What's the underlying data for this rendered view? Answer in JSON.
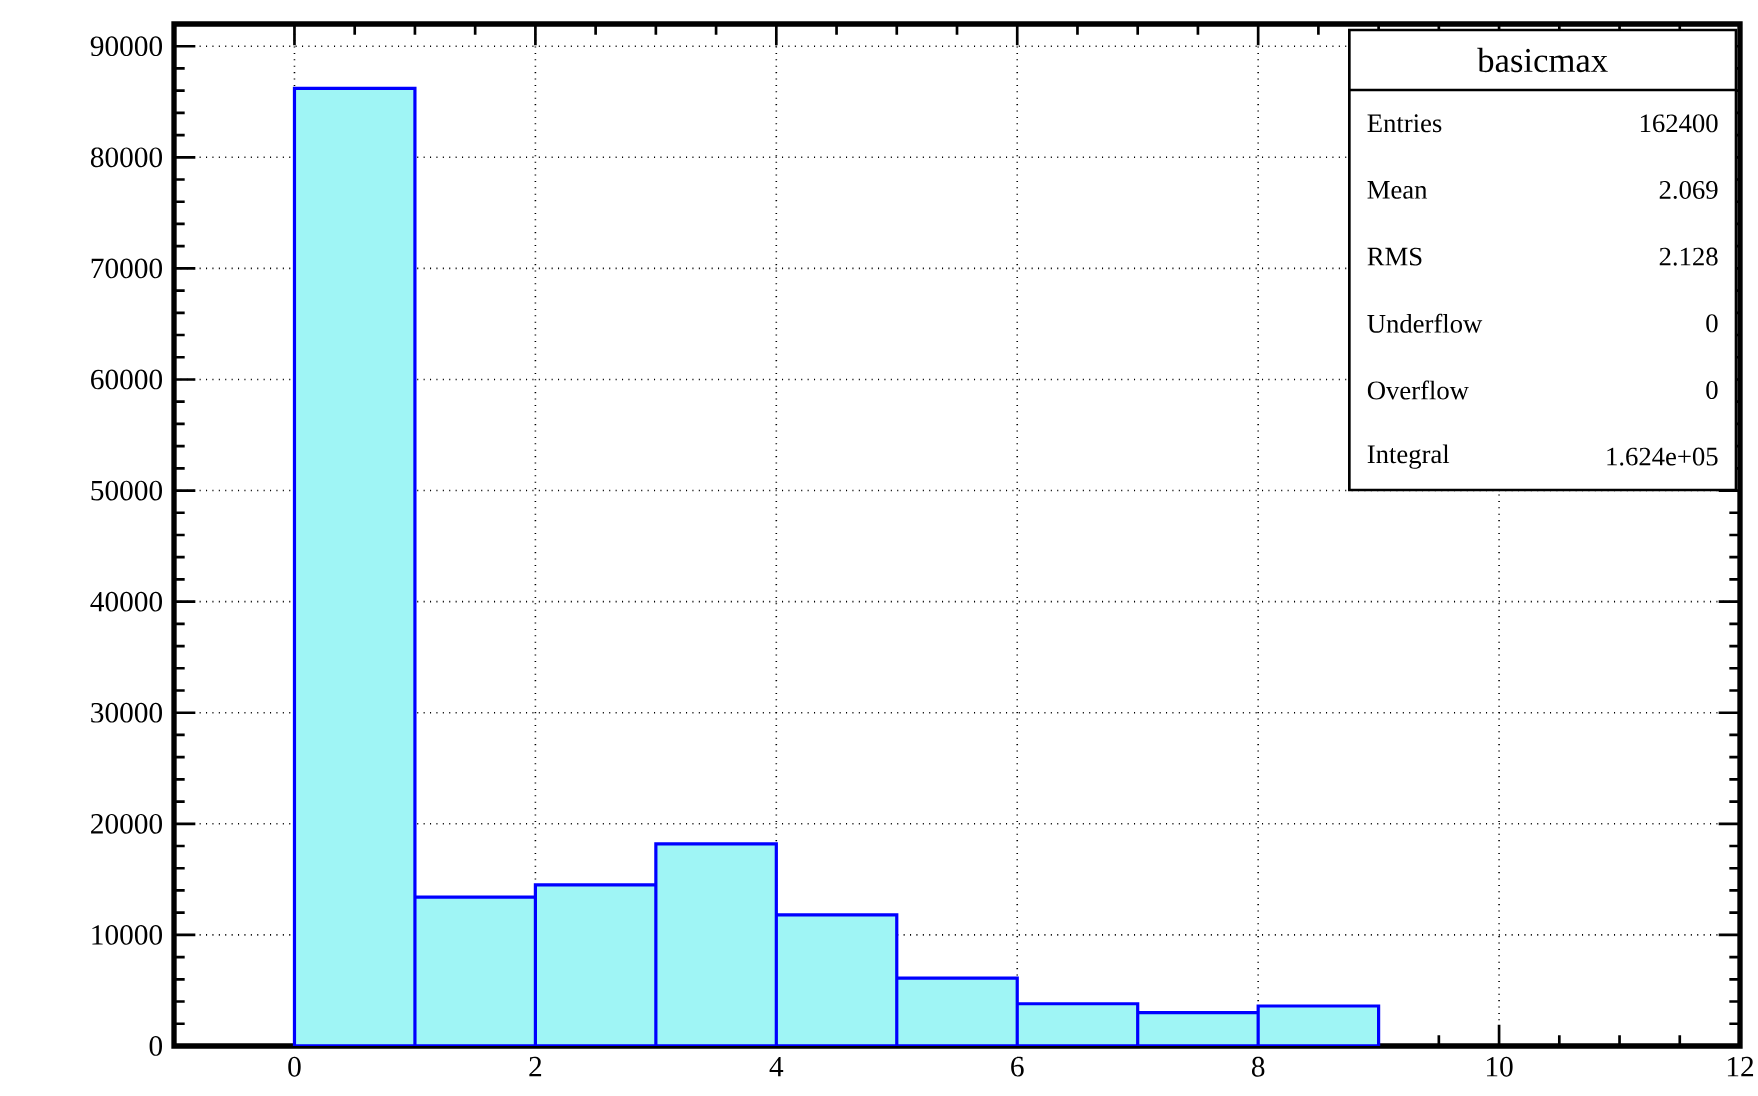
{
  "chart_data": {
    "type": "histogram",
    "title": "basicmax",
    "bins": [
      0,
      1,
      2,
      3,
      4,
      5,
      6,
      7,
      8,
      9
    ],
    "values": [
      86200,
      13400,
      14500,
      18200,
      11800,
      6100,
      3800,
      3000,
      3600
    ],
    "color": "#9ff5f5",
    "xlim": [
      -1,
      12
    ],
    "xticks": [
      0,
      2,
      4,
      6,
      8,
      10,
      12
    ],
    "ylim": [
      0,
      92000
    ],
    "yticks": [
      0,
      10000,
      20000,
      30000,
      40000,
      50000,
      60000,
      70000,
      80000,
      90000
    ],
    "grid": true,
    "annotations": [
      "Entries",
      "162400",
      "Mean",
      "2.069",
      "RMS",
      "2.128",
      "Underflow",
      "0",
      "Overflow",
      "0",
      "Integral",
      "1.624e+05"
    ]
  }
}
